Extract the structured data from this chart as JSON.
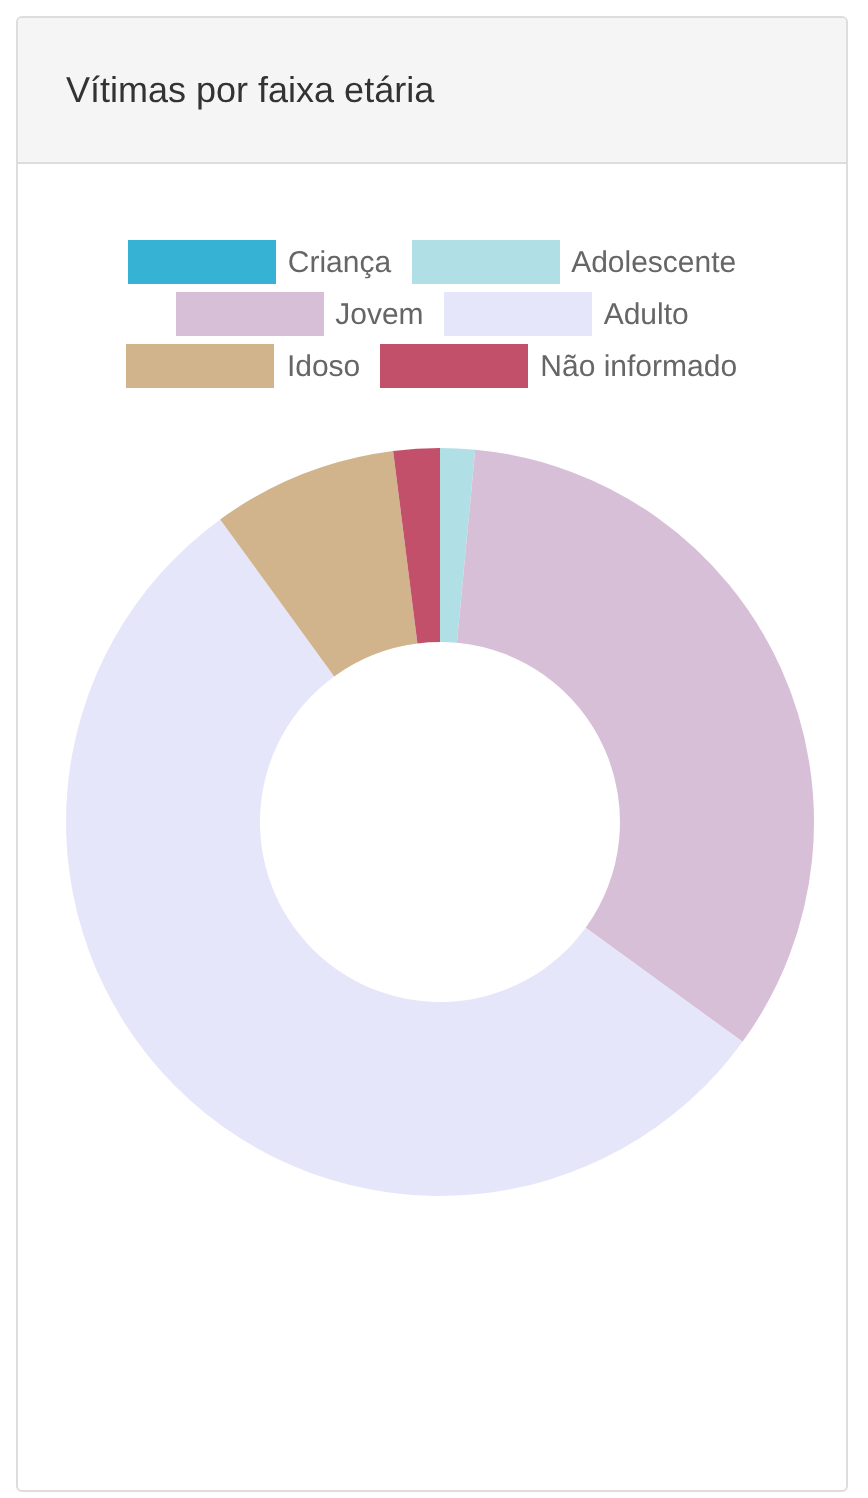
{
  "chart_data": {
    "type": "donut",
    "title": "Vítimas por faixa etária",
    "categories": [
      "Criança",
      "Adolescente",
      "Jovem",
      "Adulto",
      "Idoso",
      "Não informado"
    ],
    "values": [
      0,
      1.5,
      33.5,
      55,
      8,
      2
    ],
    "colors": [
      "#36b3d4",
      "#b0e0e6",
      "#d8bfd8",
      "#e6e6fa",
      "#d2b48c",
      "#c2506b"
    ],
    "legend": "top"
  }
}
